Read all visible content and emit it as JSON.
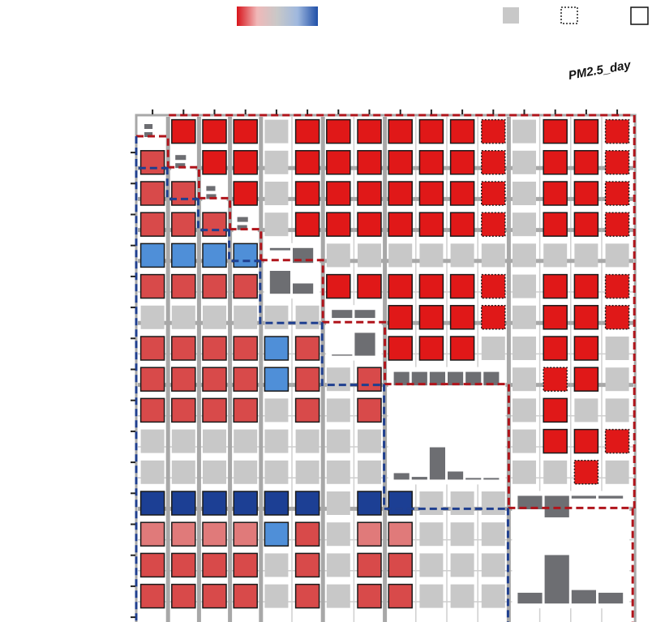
{
  "chart_data": {
    "type": "heatmap",
    "title": "",
    "corner_label": "PM2.5_day",
    "legend": {
      "gradient": [
        "#d8141b",
        "#f0b8b8",
        "#c8c8c8",
        "#9fb8de",
        "#1f4fa8"
      ],
      "swatch_color": "#c8c8c8",
      "items": [
        "gradient",
        "swatch",
        "dotted-box",
        "solid-box"
      ]
    },
    "colors": {
      "strong_pos": "#e01818",
      "pos": "#d84a4a",
      "weak_pos": "#e07a7a",
      "neg": "#4f8fd8",
      "strong_neg": "#1c3f94",
      "nonsig": "#c8c8c8",
      "hist_bar": "#6d6e72",
      "grid": "#a8a8a8",
      "upper_box": "#b0141b",
      "lower_box": "#1f3f8f"
    },
    "group_sizes": [
      1,
      1,
      1,
      1,
      2,
      2,
      4,
      4
    ],
    "rows": [
      [
        "D",
        "P",
        "P",
        "P",
        "G",
        "P",
        "P",
        "P",
        "P",
        "P",
        "P",
        "Pd",
        "G",
        "P",
        "P",
        "Pd"
      ],
      [
        "R",
        "D",
        "P",
        "P",
        "G",
        "P",
        "P",
        "P",
        "P",
        "P",
        "P",
        "Pd",
        "G",
        "P",
        "P",
        "Pd"
      ],
      [
        "R",
        "R",
        "D",
        "P",
        "G",
        "P",
        "P",
        "P",
        "P",
        "P",
        "P",
        "Pd",
        "G",
        "P",
        "P",
        "Pd"
      ],
      [
        "R",
        "R",
        "R",
        "D",
        "G",
        "P",
        "P",
        "P",
        "P",
        "P",
        "P",
        "Pd",
        "G",
        "P",
        "P",
        "Pd"
      ],
      [
        "B",
        "B",
        "B",
        "B",
        "D",
        "D",
        "G",
        "G",
        "G",
        "G",
        "G",
        "G",
        "G",
        "G",
        "G",
        "G"
      ],
      [
        "R",
        "R",
        "R",
        "R",
        "D",
        "D",
        "P",
        "P",
        "P",
        "P",
        "P",
        "Pd",
        "G",
        "P",
        "P",
        "Pd"
      ],
      [
        "G",
        "G",
        "G",
        "G",
        "G",
        "G",
        "D",
        "D",
        "P",
        "P",
        "P",
        "Pd",
        "G",
        "P",
        "P",
        "Pd"
      ],
      [
        "R",
        "R",
        "R",
        "R",
        "B",
        "R",
        "D",
        "D",
        "P",
        "P",
        "P",
        "G",
        "G",
        "P",
        "P",
        "G"
      ],
      [
        "R",
        "R",
        "R",
        "R",
        "B",
        "R",
        "G",
        "R",
        "D",
        "D",
        "D",
        "D",
        "G",
        "Pd",
        "P",
        "G"
      ],
      [
        "R",
        "R",
        "R",
        "R",
        "G",
        "R",
        "G",
        "R",
        "D",
        "D",
        "D",
        "D",
        "G",
        "P",
        "G",
        "G"
      ],
      [
        "G",
        "G",
        "G",
        "G",
        "G",
        "G",
        "G",
        "G",
        "D",
        "D",
        "D",
        "D",
        "G",
        "P",
        "P",
        "Pd"
      ],
      [
        "G",
        "G",
        "G",
        "G",
        "G",
        "G",
        "G",
        "G",
        "D",
        "D",
        "D",
        "D",
        "G",
        "G",
        "Pd",
        "G"
      ],
      [
        "N",
        "N",
        "N",
        "N",
        "N",
        "N",
        "G",
        "N",
        "N",
        "G",
        "G",
        "G",
        "D",
        "D",
        "D",
        "D"
      ],
      [
        "L",
        "L",
        "L",
        "L",
        "B",
        "R",
        "G",
        "L",
        "L",
        "G",
        "G",
        "G",
        "D",
        "D",
        "D",
        "D"
      ],
      [
        "R",
        "R",
        "R",
        "R",
        "G",
        "R",
        "G",
        "R",
        "R",
        "G",
        "G",
        "G",
        "D",
        "D",
        "D",
        "D"
      ],
      [
        "R",
        "R",
        "R",
        "R",
        "G",
        "R",
        "G",
        "R",
        "R",
        "G",
        "G",
        "G",
        "D",
        "D",
        "D",
        "D"
      ]
    ],
    "diagonal_histograms": [
      [
        0.45,
        0.45
      ],
      [
        0.65,
        0.6
      ],
      [
        0.55,
        0.6
      ],
      [
        0.65,
        0.6
      ],
      [
        0.1,
        0.65,
        1.0,
        0.45
      ],
      [
        0.35,
        0.35,
        0.05,
        1.0
      ],
      [
        0.25,
        0.25,
        0.25,
        0.25,
        0.25,
        0.25,
        0.12,
        0.05,
        0.6,
        0.15,
        0.03,
        0.03
      ],
      [
        0.25,
        0.4,
        0.05,
        0.05,
        0.2,
        0.9,
        0.25,
        0.2
      ]
    ]
  }
}
